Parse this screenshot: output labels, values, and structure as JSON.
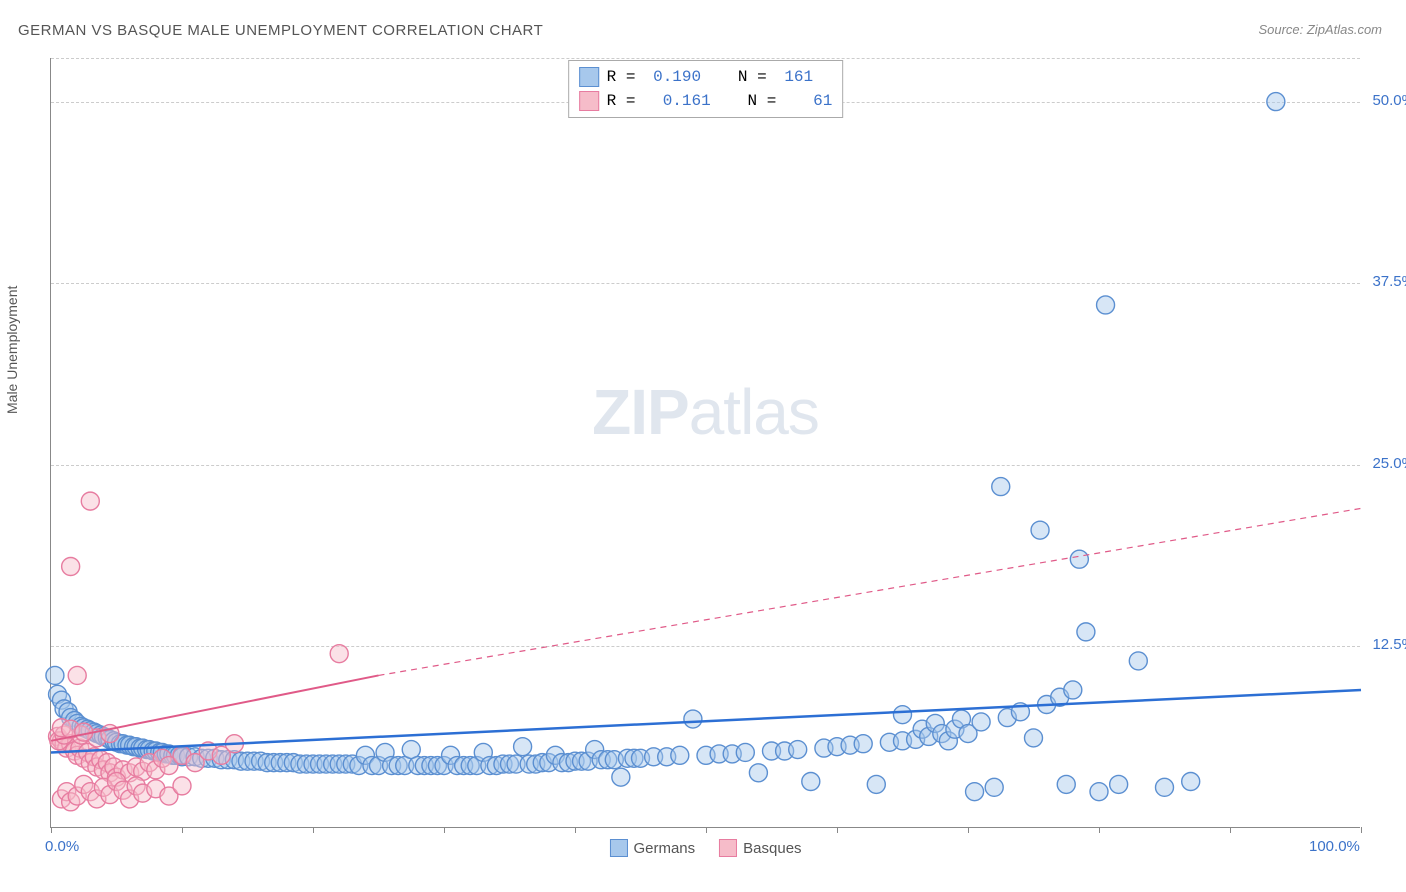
{
  "title": "GERMAN VS BASQUE MALE UNEMPLOYMENT CORRELATION CHART",
  "source": "Source: ZipAtlas.com",
  "y_axis_label": "Male Unemployment",
  "watermark_bold": "ZIP",
  "watermark_light": "atlas",
  "type": "scatter",
  "xlim": [
    0,
    100
  ],
  "ylim": [
    0,
    53
  ],
  "x_ticks": [
    0,
    10,
    20,
    30,
    40,
    50,
    60,
    70,
    80,
    90,
    100
  ],
  "x_tick_labels": {
    "0": "0.0%",
    "100": "100.0%"
  },
  "y_grid": [
    12.5,
    25.0,
    37.5,
    50.0
  ],
  "y_tick_labels": [
    "12.5%",
    "25.0%",
    "37.5%",
    "50.0%"
  ],
  "colors": {
    "german_fill": "#a7c8ec",
    "german_stroke": "#5b8fd1",
    "basque_fill": "#f6bcc9",
    "basque_stroke": "#e77ca0",
    "trend_german": "#2c6fd4",
    "trend_basque": "#e05a88",
    "grid": "#cccccc",
    "axis": "#888888",
    "label_blue": "#3b72c9",
    "text": "#555555",
    "bg": "#ffffff"
  },
  "marker_radius": 9,
  "fill_opacity": 0.45,
  "legend_top": [
    {
      "swatch_fill": "#a7c8ec",
      "swatch_stroke": "#5b8fd1",
      "r_label": "R = ",
      "r": "0.190",
      "n_label": "   N = ",
      "n": "161"
    },
    {
      "swatch_fill": "#f6bcc9",
      "swatch_stroke": "#e77ca0",
      "r_label": "R = ",
      "r": " 0.161",
      "n_label": "   N = ",
      "n": "  61"
    }
  ],
  "legend_bottom": [
    {
      "swatch_fill": "#a7c8ec",
      "swatch_stroke": "#5b8fd1",
      "label": "Germans"
    },
    {
      "swatch_fill": "#f6bcc9",
      "swatch_stroke": "#e77ca0",
      "label": "Basques"
    }
  ],
  "trend_lines": {
    "german": {
      "x1": 0,
      "y1": 5.2,
      "x2": 100,
      "y2": 9.5,
      "width": 2.5,
      "dash": ""
    },
    "basque_solid": {
      "x1": 0,
      "y1": 6.0,
      "x2": 25,
      "y2": 10.5,
      "width": 2,
      "dash": ""
    },
    "basque_dash": {
      "x1": 25,
      "y1": 10.5,
      "x2": 100,
      "y2": 22.0,
      "width": 1.2,
      "dash": "6 5"
    }
  },
  "series": {
    "germans": [
      [
        0.3,
        10.5
      ],
      [
        0.5,
        9.2
      ],
      [
        0.8,
        8.8
      ],
      [
        1.0,
        8.2
      ],
      [
        1.3,
        8.0
      ],
      [
        1.5,
        7.6
      ],
      [
        1.8,
        7.4
      ],
      [
        2.0,
        7.2
      ],
      [
        2.3,
        7.0
      ],
      [
        2.5,
        6.9
      ],
      [
        2.8,
        6.8
      ],
      [
        3.0,
        6.7
      ],
      [
        3.3,
        6.6
      ],
      [
        3.5,
        6.5
      ],
      [
        3.8,
        6.4
      ],
      [
        4.0,
        6.3
      ],
      [
        4.3,
        6.2
      ],
      [
        4.5,
        6.1
      ],
      [
        4.8,
        6.0
      ],
      [
        5.0,
        5.9
      ],
      [
        5.3,
        5.8
      ],
      [
        5.5,
        5.8
      ],
      [
        5.8,
        5.7
      ],
      [
        6.0,
        5.7
      ],
      [
        6.3,
        5.6
      ],
      [
        6.5,
        5.6
      ],
      [
        6.8,
        5.5
      ],
      [
        7.0,
        5.5
      ],
      [
        7.3,
        5.4
      ],
      [
        7.5,
        5.4
      ],
      [
        7.8,
        5.3
      ],
      [
        8.0,
        5.3
      ],
      [
        8.3,
        5.2
      ],
      [
        8.5,
        5.2
      ],
      [
        8.8,
        5.1
      ],
      [
        9.0,
        5.1
      ],
      [
        9.3,
        5.0
      ],
      [
        9.5,
        5.0
      ],
      [
        9.8,
        5.0
      ],
      [
        10.0,
        4.9
      ],
      [
        10.5,
        4.9
      ],
      [
        11.0,
        4.9
      ],
      [
        11.5,
        4.8
      ],
      [
        12.0,
        4.8
      ],
      [
        12.5,
        4.8
      ],
      [
        13.0,
        4.7
      ],
      [
        13.5,
        4.7
      ],
      [
        14.0,
        4.7
      ],
      [
        14.5,
        4.6
      ],
      [
        15.0,
        4.6
      ],
      [
        15.5,
        4.6
      ],
      [
        16.0,
        4.6
      ],
      [
        16.5,
        4.5
      ],
      [
        17.0,
        4.5
      ],
      [
        17.5,
        4.5
      ],
      [
        18.0,
        4.5
      ],
      [
        18.5,
        4.5
      ],
      [
        19.0,
        4.4
      ],
      [
        19.5,
        4.4
      ],
      [
        20.0,
        4.4
      ],
      [
        20.5,
        4.4
      ],
      [
        21.0,
        4.4
      ],
      [
        21.5,
        4.4
      ],
      [
        22.0,
        4.4
      ],
      [
        22.5,
        4.4
      ],
      [
        23.0,
        4.4
      ],
      [
        23.5,
        4.3
      ],
      [
        24.0,
        5.0
      ],
      [
        24.5,
        4.3
      ],
      [
        25.0,
        4.3
      ],
      [
        25.5,
        5.2
      ],
      [
        26.0,
        4.3
      ],
      [
        26.5,
        4.3
      ],
      [
        27.0,
        4.3
      ],
      [
        27.5,
        5.4
      ],
      [
        28.0,
        4.3
      ],
      [
        28.5,
        4.3
      ],
      [
        29.0,
        4.3
      ],
      [
        29.5,
        4.3
      ],
      [
        30.0,
        4.3
      ],
      [
        30.5,
        5.0
      ],
      [
        31.0,
        4.3
      ],
      [
        31.5,
        4.3
      ],
      [
        32.0,
        4.3
      ],
      [
        32.5,
        4.3
      ],
      [
        33.0,
        5.2
      ],
      [
        33.5,
        4.3
      ],
      [
        34.0,
        4.3
      ],
      [
        34.5,
        4.4
      ],
      [
        35.0,
        4.4
      ],
      [
        35.5,
        4.4
      ],
      [
        36.0,
        5.6
      ],
      [
        36.5,
        4.4
      ],
      [
        37.0,
        4.4
      ],
      [
        37.5,
        4.5
      ],
      [
        38.0,
        4.5
      ],
      [
        38.5,
        5.0
      ],
      [
        39.0,
        4.5
      ],
      [
        39.5,
        4.5
      ],
      [
        40.0,
        4.6
      ],
      [
        40.5,
        4.6
      ],
      [
        41.0,
        4.6
      ],
      [
        41.5,
        5.4
      ],
      [
        42.0,
        4.7
      ],
      [
        42.5,
        4.7
      ],
      [
        43.0,
        4.7
      ],
      [
        43.5,
        3.5
      ],
      [
        44.0,
        4.8
      ],
      [
        44.5,
        4.8
      ],
      [
        45.0,
        4.8
      ],
      [
        46.0,
        4.9
      ],
      [
        47.0,
        4.9
      ],
      [
        48.0,
        5.0
      ],
      [
        49.0,
        7.5
      ],
      [
        50.0,
        5.0
      ],
      [
        51.0,
        5.1
      ],
      [
        52.0,
        5.1
      ],
      [
        53.0,
        5.2
      ],
      [
        54.0,
        3.8
      ],
      [
        55.0,
        5.3
      ],
      [
        56.0,
        5.3
      ],
      [
        57.0,
        5.4
      ],
      [
        58.0,
        3.2
      ],
      [
        59.0,
        5.5
      ],
      [
        60.0,
        5.6
      ],
      [
        61.0,
        5.7
      ],
      [
        62.0,
        5.8
      ],
      [
        63.0,
        3.0
      ],
      [
        64.0,
        5.9
      ],
      [
        65.0,
        6.0
      ],
      [
        65.0,
        7.8
      ],
      [
        66.0,
        6.1
      ],
      [
        66.5,
        6.8
      ],
      [
        67.0,
        6.3
      ],
      [
        67.5,
        7.2
      ],
      [
        68.0,
        6.5
      ],
      [
        68.5,
        6.0
      ],
      [
        69.0,
        6.8
      ],
      [
        69.5,
        7.5
      ],
      [
        70.0,
        6.5
      ],
      [
        70.5,
        2.5
      ],
      [
        71.0,
        7.3
      ],
      [
        72.0,
        2.8
      ],
      [
        73.0,
        7.6
      ],
      [
        72.5,
        23.5
      ],
      [
        74.0,
        8.0
      ],
      [
        75.0,
        6.2
      ],
      [
        76.0,
        8.5
      ],
      [
        75.5,
        20.5
      ],
      [
        77.0,
        9.0
      ],
      [
        77.5,
        3.0
      ],
      [
        78.0,
        9.5
      ],
      [
        78.5,
        18.5
      ],
      [
        79.0,
        13.5
      ],
      [
        80.0,
        2.5
      ],
      [
        80.5,
        36.0
      ],
      [
        81.5,
        3.0
      ],
      [
        83.0,
        11.5
      ],
      [
        85.0,
        2.8
      ],
      [
        87.0,
        3.2
      ],
      [
        93.5,
        50.0
      ]
    ],
    "basques": [
      [
        0.5,
        6.3
      ],
      [
        0.8,
        6.0
      ],
      [
        1.0,
        5.8
      ],
      [
        1.2,
        5.5
      ],
      [
        1.5,
        5.8
      ],
      [
        1.8,
        5.3
      ],
      [
        2.0,
        5.0
      ],
      [
        2.2,
        5.5
      ],
      [
        2.5,
        4.8
      ],
      [
        2.8,
        5.2
      ],
      [
        3.0,
        4.5
      ],
      [
        3.3,
        4.9
      ],
      [
        3.5,
        4.2
      ],
      [
        3.8,
        4.7
      ],
      [
        4.0,
        4.0
      ],
      [
        4.3,
        4.5
      ],
      [
        4.5,
        3.8
      ],
      [
        4.8,
        4.2
      ],
      [
        5.0,
        3.5
      ],
      [
        5.5,
        4.0
      ],
      [
        6.0,
        3.8
      ],
      [
        6.5,
        4.2
      ],
      [
        7.0,
        3.9
      ],
      [
        7.5,
        4.5
      ],
      [
        8.0,
        4.0
      ],
      [
        8.5,
        4.8
      ],
      [
        9.0,
        4.3
      ],
      [
        10.0,
        5.0
      ],
      [
        11.0,
        4.5
      ],
      [
        12.0,
        5.3
      ],
      [
        13.0,
        5.0
      ],
      [
        14.0,
        5.8
      ],
      [
        0.8,
        2.0
      ],
      [
        1.2,
        2.5
      ],
      [
        1.5,
        1.8
      ],
      [
        2.0,
        2.2
      ],
      [
        2.5,
        3.0
      ],
      [
        3.0,
        2.5
      ],
      [
        3.5,
        2.0
      ],
      [
        4.0,
        2.8
      ],
      [
        4.5,
        2.3
      ],
      [
        5.0,
        3.2
      ],
      [
        5.5,
        2.6
      ],
      [
        6.0,
        2.0
      ],
      [
        6.5,
        2.9
      ],
      [
        7.0,
        2.4
      ],
      [
        8.0,
        2.7
      ],
      [
        9.0,
        2.2
      ],
      [
        10.0,
        2.9
      ],
      [
        0.6,
        6.0
      ],
      [
        1.0,
        6.4
      ],
      [
        2.3,
        6.4
      ],
      [
        3.5,
        6.2
      ],
      [
        4.5,
        6.5
      ],
      [
        0.8,
        6.9
      ],
      [
        1.5,
        6.8
      ],
      [
        2.5,
        6.6
      ],
      [
        2.0,
        10.5
      ],
      [
        3.0,
        22.5
      ],
      [
        1.5,
        18.0
      ],
      [
        22.0,
        12.0
      ]
    ]
  }
}
